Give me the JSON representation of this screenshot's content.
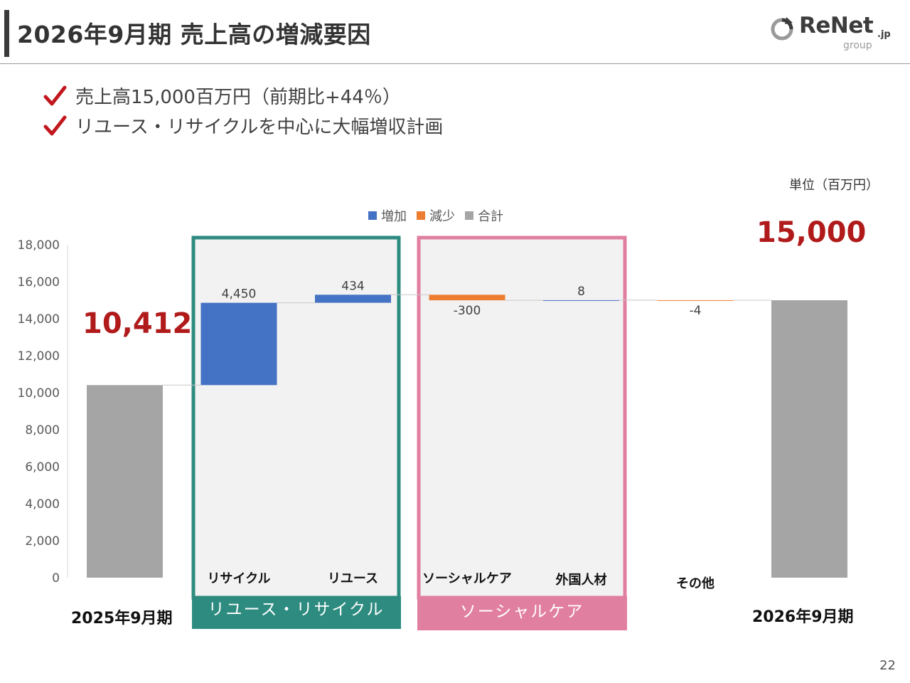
{
  "title": "2026年9月期 売上高の増減要因",
  "logo": {
    "name": "ReNet",
    "suffix": ".jp",
    "sub": "group"
  },
  "bullets": [
    "売上高15,000百万円（前期比+44％）",
    "リユース・リサイクルを中心に大幅増収計画"
  ],
  "unit_label": "単位（百万円）",
  "legend": [
    {
      "label": "増加",
      "color": "#4472c4"
    },
    {
      "label": "減少",
      "color": "#ed7d31"
    },
    {
      "label": "合計",
      "color": "#a5a5a5"
    }
  ],
  "groups": [
    {
      "label": "リユース・リサイクル",
      "color": "#2e8b80"
    },
    {
      "label": "ソーシャルケア",
      "color": "#e17fa0"
    }
  ],
  "start_total": "10,412",
  "end_total": "15,000",
  "start_period": "2025年9月期",
  "end_period": "2026年9月期",
  "page_number": "22",
  "chart_data": {
    "type": "bar",
    "subtype": "waterfall",
    "categories": [
      "2025年9月期",
      "リサイクル",
      "リユース",
      "ソーシャルケア",
      "外国人材",
      "その他",
      "2026年9月期"
    ],
    "category_labels_shown": [
      "",
      "リサイクル",
      "リユース",
      "ソーシャルケア",
      "外国人材",
      "その他",
      ""
    ],
    "values": [
      10412,
      4450,
      434,
      -300,
      8,
      -4,
      15000
    ],
    "kinds": [
      "total",
      "increase",
      "increase",
      "decrease",
      "increase",
      "decrease",
      "total"
    ],
    "data_labels": [
      "",
      "4,450",
      "434",
      "-300",
      "8",
      "-4",
      ""
    ],
    "ylim": [
      0,
      18000
    ],
    "yticks": [
      "0",
      "2,000",
      "4,000",
      "6,000",
      "8,000",
      "10,000",
      "12,000",
      "14,000",
      "16,000",
      "18,000"
    ],
    "grid": false,
    "legend_position": "top-center"
  }
}
